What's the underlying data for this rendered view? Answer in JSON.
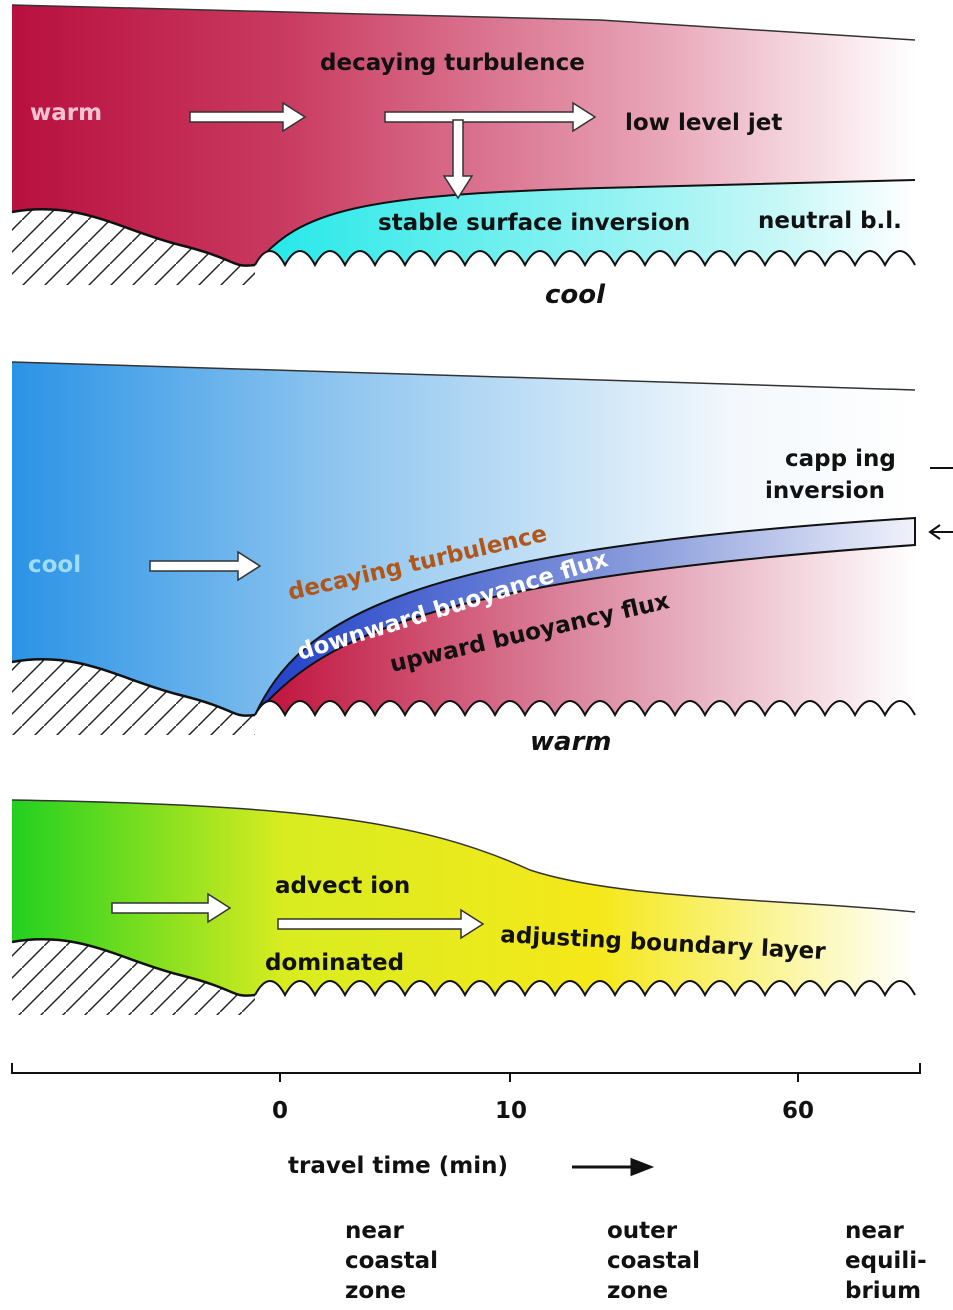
{
  "panels": [
    {
      "air": "warm",
      "process": "decaying turbulence",
      "jet": "low level jet",
      "layer": "stable surface inversion",
      "neutral": "neutral b.l.",
      "surface": "cool"
    },
    {
      "air": "cool",
      "capping": [
        "capp ing",
        "inversion"
      ],
      "process": "decaying turbulence",
      "downward": "downward buoyance flux",
      "upward": "upward buoyancy flux",
      "surface": "warm"
    },
    {
      "advection": "advect ion",
      "dominated": "dominated",
      "layer": "adjusting boundary layer"
    }
  ],
  "axis": {
    "ticks": [
      0,
      10,
      60
    ],
    "label": "travel time (min)"
  },
  "zones": [
    [
      "near",
      "coastal",
      "zone"
    ],
    [
      "outer",
      "coastal",
      "zone"
    ],
    [
      "near",
      "equili-",
      "brium"
    ]
  ]
}
